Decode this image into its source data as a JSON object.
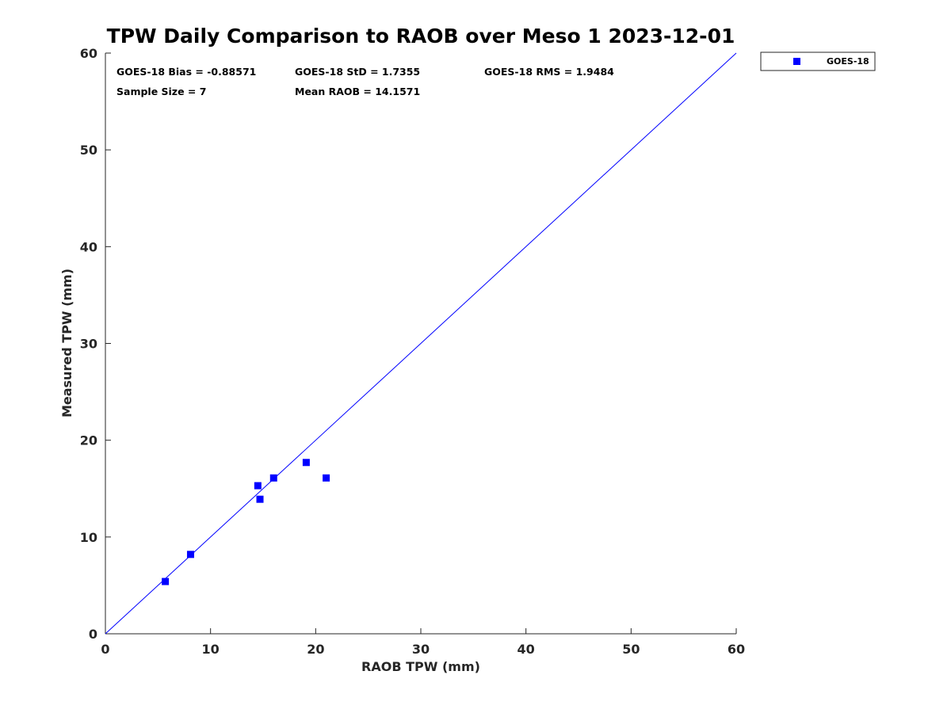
{
  "chart_data": {
    "type": "scatter",
    "title": "TPW Daily Comparison to RAOB over Meso 1 2023-12-01",
    "xlabel": "RAOB TPW (mm)",
    "ylabel": "Measured TPW (mm)",
    "xlim": [
      0,
      60
    ],
    "ylim": [
      0,
      60
    ],
    "x_ticks": [
      "0",
      "10",
      "20",
      "30",
      "40",
      "50",
      "60"
    ],
    "y_ticks": [
      "0",
      "10",
      "20",
      "30",
      "40",
      "50",
      "60"
    ],
    "grid": false,
    "legend_position": "outside-top-right",
    "reference_line": {
      "from": [
        0,
        0
      ],
      "to": [
        60,
        60
      ],
      "color": "#0000ff"
    },
    "series": [
      {
        "name": "GOES-18",
        "color": "#0000ff",
        "marker": "square",
        "points": [
          {
            "x": 5.7,
            "y": 5.4
          },
          {
            "x": 8.1,
            "y": 8.2
          },
          {
            "x": 14.5,
            "y": 15.3
          },
          {
            "x": 14.7,
            "y": 13.9
          },
          {
            "x": 16.0,
            "y": 16.1
          },
          {
            "x": 19.1,
            "y": 17.7
          },
          {
            "x": 21.0,
            "y": 16.1
          }
        ]
      }
    ],
    "annotations": {
      "bias": "GOES-18 Bias = -0.88571",
      "std": "GOES-18 StD = 1.7355",
      "rms": "GOES-18 RMS = 1.9484",
      "sample_size": "Sample Size = 7",
      "mean_raob": "Mean RAOB = 14.1571"
    }
  }
}
